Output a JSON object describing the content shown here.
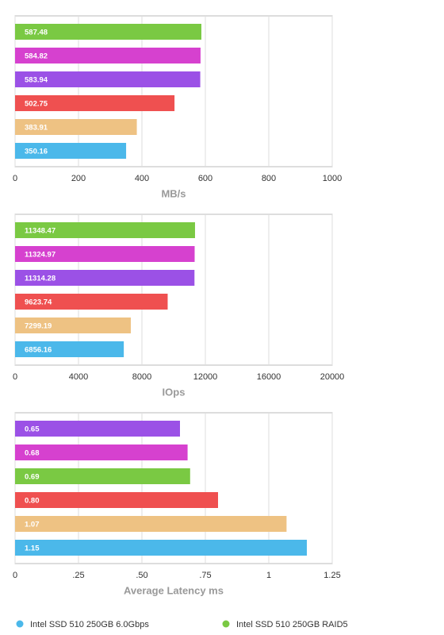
{
  "chart_data": [
    {
      "type": "hbar",
      "xlabel": "MB/s",
      "values": [
        587.48,
        584.82,
        583.94,
        502.75,
        383.91,
        350.16
      ],
      "colors": [
        "#7ac943",
        "#d641cf",
        "#9b51e6",
        "#ef5050",
        "#eec283",
        "#4bb8ea"
      ],
      "xlim": [
        0,
        1000
      ],
      "xticks": [
        0,
        200,
        400,
        600,
        800,
        1000
      ],
      "grid": true
    },
    {
      "type": "hbar",
      "xlabel": "IOps",
      "values": [
        11348.47,
        11324.97,
        11314.28,
        9623.74,
        7299.19,
        6856.16
      ],
      "colors": [
        "#7ac943",
        "#d641cf",
        "#9b51e6",
        "#ef5050",
        "#eec283",
        "#4bb8ea"
      ],
      "xlim": [
        0,
        20000
      ],
      "xticks": [
        0,
        4000,
        8000,
        12000,
        16000,
        20000
      ],
      "grid": true
    },
    {
      "type": "hbar",
      "xlabel": "Average Latency ms",
      "values": [
        0.65,
        0.68,
        0.69,
        0.8,
        1.07,
        1.15
      ],
      "value_labels": [
        "0.65",
        "0.68",
        "0.69",
        "0.80",
        "1.07",
        "1.15"
      ],
      "colors": [
        "#9b51e6",
        "#d641cf",
        "#7ac943",
        "#ef5050",
        "#eec283",
        "#4bb8ea"
      ],
      "xlim": [
        0,
        1.25
      ],
      "xticks": [
        0,
        {
          "value": 0.25,
          "label": ".25"
        },
        {
          "value": 0.5,
          "label": ".50"
        },
        {
          "value": 0.75,
          "label": ".75"
        },
        1,
        1.25
      ],
      "grid": true
    }
  ],
  "legend": [
    {
      "name": "Intel SSD 510 250GB 6.0Gbps",
      "color": "#4bb8ea"
    },
    {
      "name": "Intel SSD 510 250GB RAID5",
      "color": "#7ac943"
    }
  ]
}
